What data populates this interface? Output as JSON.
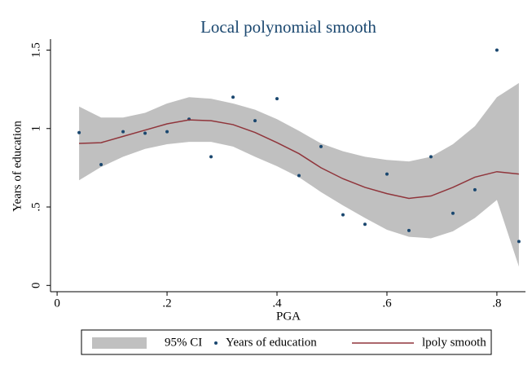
{
  "chart_data": {
    "type": "line",
    "title": "Local polynomial smooth",
    "xlabel": "PGA",
    "ylabel": "Years of education",
    "xlim": [
      -0.012,
      0.852
    ],
    "ylim": [
      -0.04,
      1.57
    ],
    "xticks": [
      0,
      {
        "value": 0.2,
        "label": ".2"
      },
      {
        "value": 0.4,
        "label": ".4"
      },
      {
        "value": 0.6,
        "label": ".6"
      },
      {
        "value": 0.8,
        "label": ".8"
      }
    ],
    "yticks": [
      0,
      {
        "value": 0.5,
        "label": ".5"
      },
      1,
      1.5
    ],
    "grid": false,
    "legend": "bottom",
    "x": [
      0.04,
      0.08,
      0.12,
      0.16,
      0.2,
      0.24,
      0.28,
      0.32,
      0.36,
      0.4,
      0.44,
      0.48,
      0.52,
      0.56,
      0.6,
      0.64,
      0.68,
      0.72,
      0.76,
      0.8,
      0.84
    ],
    "series": [
      {
        "name": "95% CI",
        "style": "band",
        "color": "#c0c0c0",
        "upper": [
          1.14,
          1.07,
          1.07,
          1.1,
          1.16,
          1.2,
          1.19,
          1.16,
          1.12,
          1.06,
          0.985,
          0.905,
          0.855,
          0.82,
          0.8,
          0.79,
          0.82,
          0.9,
          1.015,
          1.2,
          1.29
        ],
        "lower": [
          0.67,
          0.755,
          0.82,
          0.87,
          0.9,
          0.915,
          0.915,
          0.885,
          0.82,
          0.76,
          0.69,
          0.595,
          0.51,
          0.43,
          0.355,
          0.31,
          0.3,
          0.345,
          0.43,
          0.545,
          0.12
        ]
      },
      {
        "name": "Years of education",
        "style": "points",
        "color": "#1a476f",
        "values": [
          0.974,
          0.77,
          0.98,
          0.97,
          0.98,
          1.06,
          0.82,
          1.2,
          1.05,
          1.19,
          0.7,
          0.885,
          0.45,
          0.39,
          0.71,
          0.35,
          0.82,
          0.46,
          0.61,
          1.5,
          0.28
        ]
      },
      {
        "name": "lpoly smooth",
        "style": "line",
        "color": "#90353b",
        "values": [
          0.905,
          0.91,
          0.95,
          0.99,
          1.03,
          1.055,
          1.05,
          1.025,
          0.975,
          0.91,
          0.84,
          0.75,
          0.68,
          0.625,
          0.585,
          0.555,
          0.57,
          0.625,
          0.69,
          0.725,
          0.71
        ]
      }
    ]
  }
}
